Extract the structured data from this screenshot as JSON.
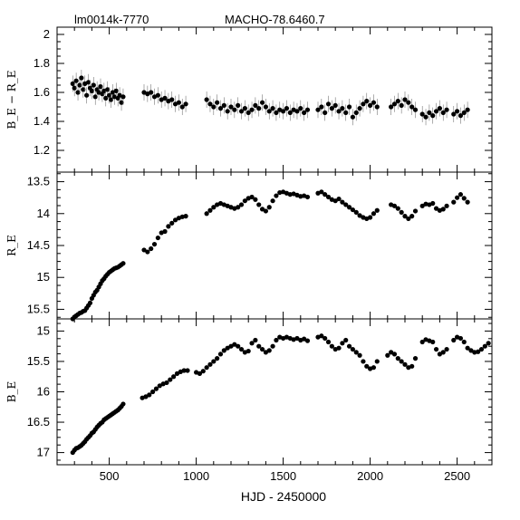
{
  "chart_data": [
    {
      "type": "scatter",
      "title_left": "lm0014k-7770",
      "title_right": "MACHO-78.6460.7",
      "ylabel": "B_E − R_E",
      "xlabel": "",
      "xlim": [
        200,
        2700
      ],
      "ylim": [
        1.05,
        2.05
      ],
      "y_inverted": false,
      "yticks_major": [
        1.2,
        1.4,
        1.6,
        1.8,
        2
      ],
      "ytick_labels": [
        "1.2",
        "1.4",
        "1.6",
        "1.8",
        "2"
      ],
      "points": [
        [
          290,
          1.66
        ],
        [
          300,
          1.63
        ],
        [
          310,
          1.68
        ],
        [
          320,
          1.6
        ],
        [
          330,
          1.65
        ],
        [
          340,
          1.7
        ],
        [
          350,
          1.62
        ],
        [
          360,
          1.66
        ],
        [
          370,
          1.58
        ],
        [
          380,
          1.67
        ],
        [
          390,
          1.63
        ],
        [
          400,
          1.61
        ],
        [
          410,
          1.65
        ],
        [
          420,
          1.57
        ],
        [
          430,
          1.62
        ],
        [
          440,
          1.6
        ],
        [
          450,
          1.64
        ],
        [
          460,
          1.59
        ],
        [
          470,
          1.61
        ],
        [
          480,
          1.56
        ],
        [
          490,
          1.62
        ],
        [
          500,
          1.58
        ],
        [
          510,
          1.55
        ],
        [
          520,
          1.6
        ],
        [
          530,
          1.57
        ],
        [
          540,
          1.61
        ],
        [
          550,
          1.56
        ],
        [
          560,
          1.58
        ],
        [
          570,
          1.53
        ],
        [
          580,
          1.57
        ],
        [
          700,
          1.6
        ],
        [
          720,
          1.59
        ],
        [
          740,
          1.6
        ],
        [
          760,
          1.57
        ],
        [
          780,
          1.58
        ],
        [
          800,
          1.55
        ],
        [
          820,
          1.56
        ],
        [
          840,
          1.54
        ],
        [
          860,
          1.55
        ],
        [
          880,
          1.52
        ],
        [
          900,
          1.53
        ],
        [
          920,
          1.5
        ],
        [
          940,
          1.52
        ],
        [
          1060,
          1.55
        ],
        [
          1080,
          1.52
        ],
        [
          1100,
          1.5
        ],
        [
          1120,
          1.53
        ],
        [
          1140,
          1.49
        ],
        [
          1160,
          1.51
        ],
        [
          1180,
          1.47
        ],
        [
          1200,
          1.5
        ],
        [
          1220,
          1.48
        ],
        [
          1240,
          1.51
        ],
        [
          1260,
          1.47
        ],
        [
          1280,
          1.49
        ],
        [
          1300,
          1.46
        ],
        [
          1320,
          1.48
        ],
        [
          1340,
          1.51
        ],
        [
          1360,
          1.49
        ],
        [
          1380,
          1.53
        ],
        [
          1400,
          1.5
        ],
        [
          1420,
          1.47
        ],
        [
          1440,
          1.49
        ],
        [
          1460,
          1.46
        ],
        [
          1480,
          1.48
        ],
        [
          1500,
          1.47
        ],
        [
          1520,
          1.49
        ],
        [
          1540,
          1.46
        ],
        [
          1560,
          1.48
        ],
        [
          1580,
          1.47
        ],
        [
          1600,
          1.49
        ],
        [
          1620,
          1.46
        ],
        [
          1640,
          1.48
        ],
        [
          1700,
          1.48
        ],
        [
          1720,
          1.5
        ],
        [
          1740,
          1.46
        ],
        [
          1760,
          1.52
        ],
        [
          1780,
          1.49
        ],
        [
          1800,
          1.51
        ],
        [
          1820,
          1.47
        ],
        [
          1840,
          1.49
        ],
        [
          1860,
          1.46
        ],
        [
          1880,
          1.5
        ],
        [
          1900,
          1.43
        ],
        [
          1920,
          1.46
        ],
        [
          1940,
          1.49
        ],
        [
          1960,
          1.52
        ],
        [
          1980,
          1.54
        ],
        [
          2000,
          1.51
        ],
        [
          2020,
          1.53
        ],
        [
          2040,
          1.5
        ],
        [
          2120,
          1.5
        ],
        [
          2140,
          1.52
        ],
        [
          2160,
          1.54
        ],
        [
          2180,
          1.51
        ],
        [
          2200,
          1.55
        ],
        [
          2220,
          1.53
        ],
        [
          2240,
          1.5
        ],
        [
          2260,
          1.48
        ],
        [
          2300,
          1.45
        ],
        [
          2320,
          1.43
        ],
        [
          2340,
          1.46
        ],
        [
          2360,
          1.44
        ],
        [
          2380,
          1.47
        ],
        [
          2400,
          1.49
        ],
        [
          2420,
          1.46
        ],
        [
          2440,
          1.48
        ],
        [
          2480,
          1.45
        ],
        [
          2500,
          1.47
        ],
        [
          2520,
          1.44
        ],
        [
          2540,
          1.46
        ],
        [
          2560,
          1.48
        ]
      ]
    },
    {
      "type": "scatter",
      "ylabel": "R_E",
      "xlabel": "",
      "xlim": [
        200,
        2700
      ],
      "ylim": [
        15.65,
        13.35
      ],
      "y_inverted": true,
      "yticks_major": [
        13.5,
        14,
        14.5,
        15,
        15.5
      ],
      "ytick_labels": [
        "13.5",
        "14",
        "14.5",
        "15",
        "15.5"
      ],
      "points": [
        [
          290,
          15.65
        ],
        [
          300,
          15.62
        ],
        [
          310,
          15.6
        ],
        [
          320,
          15.58
        ],
        [
          330,
          15.56
        ],
        [
          340,
          15.55
        ],
        [
          350,
          15.53
        ],
        [
          360,
          15.52
        ],
        [
          370,
          15.48
        ],
        [
          380,
          15.44
        ],
        [
          390,
          15.4
        ],
        [
          400,
          15.33
        ],
        [
          410,
          15.28
        ],
        [
          420,
          15.23
        ],
        [
          430,
          15.2
        ],
        [
          440,
          15.15
        ],
        [
          450,
          15.1
        ],
        [
          460,
          15.05
        ],
        [
          470,
          15.02
        ],
        [
          480,
          14.98
        ],
        [
          490,
          14.95
        ],
        [
          500,
          14.92
        ],
        [
          510,
          14.9
        ],
        [
          520,
          14.88
        ],
        [
          530,
          14.86
        ],
        [
          540,
          14.85
        ],
        [
          550,
          14.84
        ],
        [
          560,
          14.82
        ],
        [
          570,
          14.8
        ],
        [
          580,
          14.78
        ],
        [
          700,
          14.57
        ],
        [
          720,
          14.6
        ],
        [
          740,
          14.55
        ],
        [
          760,
          14.48
        ],
        [
          780,
          14.38
        ],
        [
          800,
          14.3
        ],
        [
          820,
          14.28
        ],
        [
          840,
          14.2
        ],
        [
          860,
          14.15
        ],
        [
          880,
          14.1
        ],
        [
          900,
          14.07
        ],
        [
          920,
          14.05
        ],
        [
          940,
          14.04
        ],
        [
          1060,
          14.0
        ],
        [
          1080,
          13.95
        ],
        [
          1100,
          13.9
        ],
        [
          1120,
          13.86
        ],
        [
          1140,
          13.84
        ],
        [
          1160,
          13.86
        ],
        [
          1180,
          13.88
        ],
        [
          1200,
          13.9
        ],
        [
          1220,
          13.92
        ],
        [
          1240,
          13.9
        ],
        [
          1260,
          13.86
        ],
        [
          1280,
          13.8
        ],
        [
          1300,
          13.76
        ],
        [
          1320,
          13.74
        ],
        [
          1340,
          13.78
        ],
        [
          1360,
          13.86
        ],
        [
          1380,
          13.93
        ],
        [
          1400,
          13.96
        ],
        [
          1420,
          13.9
        ],
        [
          1440,
          13.8
        ],
        [
          1460,
          13.72
        ],
        [
          1480,
          13.67
        ],
        [
          1500,
          13.66
        ],
        [
          1520,
          13.68
        ],
        [
          1540,
          13.7
        ],
        [
          1560,
          13.69
        ],
        [
          1580,
          13.71
        ],
        [
          1600,
          13.73
        ],
        [
          1620,
          13.72
        ],
        [
          1640,
          13.74
        ],
        [
          1700,
          13.68
        ],
        [
          1720,
          13.66
        ],
        [
          1740,
          13.7
        ],
        [
          1760,
          13.74
        ],
        [
          1780,
          13.78
        ],
        [
          1800,
          13.8
        ],
        [
          1820,
          13.77
        ],
        [
          1840,
          13.82
        ],
        [
          1860,
          13.86
        ],
        [
          1880,
          13.9
        ],
        [
          1900,
          13.94
        ],
        [
          1920,
          13.98
        ],
        [
          1940,
          14.03
        ],
        [
          1960,
          14.06
        ],
        [
          1980,
          14.08
        ],
        [
          2000,
          14.06
        ],
        [
          2020,
          14.0
        ],
        [
          2040,
          13.95
        ],
        [
          2120,
          13.86
        ],
        [
          2140,
          13.88
        ],
        [
          2160,
          13.92
        ],
        [
          2180,
          13.98
        ],
        [
          2200,
          14.04
        ],
        [
          2220,
          14.08
        ],
        [
          2240,
          14.04
        ],
        [
          2260,
          13.96
        ],
        [
          2300,
          13.88
        ],
        [
          2320,
          13.85
        ],
        [
          2340,
          13.86
        ],
        [
          2360,
          13.84
        ],
        [
          2380,
          13.92
        ],
        [
          2400,
          13.95
        ],
        [
          2420,
          13.93
        ],
        [
          2440,
          13.88
        ],
        [
          2480,
          13.82
        ],
        [
          2500,
          13.75
        ],
        [
          2520,
          13.7
        ],
        [
          2540,
          13.76
        ],
        [
          2560,
          13.82
        ]
      ]
    },
    {
      "type": "scatter",
      "ylabel": "B_E",
      "xlabel": "HJD - 2450000",
      "xlim": [
        200,
        2700
      ],
      "ylim": [
        17.2,
        14.8
      ],
      "y_inverted": true,
      "yticks_major": [
        15,
        15.5,
        16,
        16.5,
        17
      ],
      "ytick_labels": [
        "15",
        "15.5",
        "16",
        "16.5",
        "17"
      ],
      "xticks_major": [
        500,
        1000,
        1500,
        2000,
        2500
      ],
      "xtick_labels": [
        "500",
        "1000",
        "1500",
        "2000",
        "2500"
      ],
      "points": [
        [
          290,
          17.0
        ],
        [
          300,
          16.96
        ],
        [
          310,
          16.93
        ],
        [
          320,
          16.92
        ],
        [
          330,
          16.9
        ],
        [
          340,
          16.88
        ],
        [
          350,
          16.85
        ],
        [
          360,
          16.82
        ],
        [
          370,
          16.78
        ],
        [
          380,
          16.75
        ],
        [
          390,
          16.72
        ],
        [
          400,
          16.68
        ],
        [
          410,
          16.66
        ],
        [
          420,
          16.62
        ],
        [
          430,
          16.58
        ],
        [
          440,
          16.55
        ],
        [
          450,
          16.52
        ],
        [
          460,
          16.5
        ],
        [
          470,
          16.46
        ],
        [
          480,
          16.44
        ],
        [
          490,
          16.42
        ],
        [
          500,
          16.4
        ],
        [
          510,
          16.38
        ],
        [
          520,
          16.36
        ],
        [
          530,
          16.34
        ],
        [
          540,
          16.32
        ],
        [
          550,
          16.3
        ],
        [
          560,
          16.27
        ],
        [
          570,
          16.24
        ],
        [
          580,
          16.2
        ],
        [
          690,
          16.1
        ],
        [
          710,
          16.08
        ],
        [
          730,
          16.05
        ],
        [
          750,
          16.0
        ],
        [
          770,
          15.95
        ],
        [
          790,
          15.9
        ],
        [
          810,
          15.87
        ],
        [
          830,
          15.85
        ],
        [
          850,
          15.8
        ],
        [
          870,
          15.75
        ],
        [
          890,
          15.7
        ],
        [
          910,
          15.67
        ],
        [
          930,
          15.65
        ],
        [
          950,
          15.65
        ],
        [
          1000,
          15.68
        ],
        [
          1020,
          15.7
        ],
        [
          1040,
          15.66
        ],
        [
          1060,
          15.6
        ],
        [
          1080,
          15.55
        ],
        [
          1100,
          15.5
        ],
        [
          1120,
          15.45
        ],
        [
          1140,
          15.38
        ],
        [
          1160,
          15.32
        ],
        [
          1180,
          15.28
        ],
        [
          1200,
          15.25
        ],
        [
          1220,
          15.22
        ],
        [
          1240,
          15.25
        ],
        [
          1260,
          15.3
        ],
        [
          1280,
          15.35
        ],
        [
          1300,
          15.33
        ],
        [
          1320,
          15.2
        ],
        [
          1340,
          15.15
        ],
        [
          1360,
          15.25
        ],
        [
          1380,
          15.3
        ],
        [
          1400,
          15.35
        ],
        [
          1420,
          15.32
        ],
        [
          1440,
          15.25
        ],
        [
          1460,
          15.15
        ],
        [
          1480,
          15.1
        ],
        [
          1500,
          15.12
        ],
        [
          1520,
          15.1
        ],
        [
          1540,
          15.12
        ],
        [
          1560,
          15.14
        ],
        [
          1580,
          15.12
        ],
        [
          1600,
          15.15
        ],
        [
          1620,
          15.13
        ],
        [
          1640,
          15.16
        ],
        [
          1700,
          15.1
        ],
        [
          1720,
          15.08
        ],
        [
          1740,
          15.12
        ],
        [
          1760,
          15.18
        ],
        [
          1780,
          15.25
        ],
        [
          1800,
          15.3
        ],
        [
          1820,
          15.28
        ],
        [
          1840,
          15.2
        ],
        [
          1860,
          15.15
        ],
        [
          1880,
          15.25
        ],
        [
          1900,
          15.3
        ],
        [
          1920,
          15.35
        ],
        [
          1940,
          15.4
        ],
        [
          1960,
          15.5
        ],
        [
          1980,
          15.58
        ],
        [
          2000,
          15.62
        ],
        [
          2020,
          15.6
        ],
        [
          2040,
          15.5
        ],
        [
          2100,
          15.4
        ],
        [
          2120,
          15.35
        ],
        [
          2140,
          15.38
        ],
        [
          2160,
          15.45
        ],
        [
          2180,
          15.5
        ],
        [
          2200,
          15.55
        ],
        [
          2220,
          15.6
        ],
        [
          2240,
          15.58
        ],
        [
          2260,
          15.45
        ],
        [
          2300,
          15.18
        ],
        [
          2320,
          15.14
        ],
        [
          2340,
          15.16
        ],
        [
          2360,
          15.18
        ],
        [
          2380,
          15.3
        ],
        [
          2400,
          15.38
        ],
        [
          2420,
          15.35
        ],
        [
          2440,
          15.3
        ],
        [
          2480,
          15.15
        ],
        [
          2500,
          15.1
        ],
        [
          2520,
          15.12
        ],
        [
          2540,
          15.18
        ],
        [
          2560,
          15.28
        ],
        [
          2580,
          15.32
        ],
        [
          2600,
          15.35
        ],
        [
          2620,
          15.34
        ],
        [
          2640,
          15.3
        ],
        [
          2660,
          15.25
        ],
        [
          2680,
          15.2
        ]
      ]
    }
  ]
}
